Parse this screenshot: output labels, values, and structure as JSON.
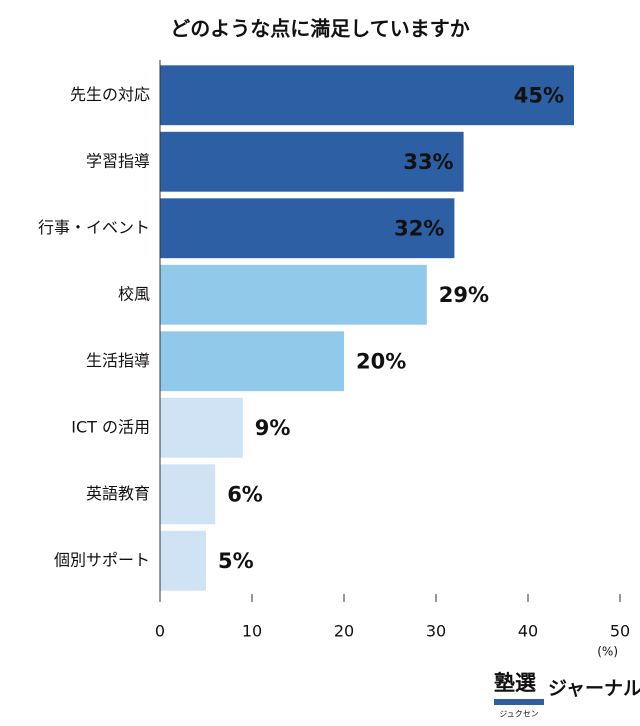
{
  "chart_data": {
    "type": "bar",
    "orientation": "horizontal",
    "title": "どのような点に満足していますか",
    "categories": [
      "先生の対応",
      "学習指導",
      "行事・イベント",
      "校風",
      "生活指導",
      "ICT の活用",
      "英語教育",
      "個別サポート"
    ],
    "values": [
      45,
      33,
      32,
      29,
      20,
      9,
      6,
      5
    ],
    "value_labels": [
      "45%",
      "33%",
      "32%",
      "29%",
      "20%",
      "9%",
      "6%",
      "5%"
    ],
    "colors": [
      "#2c5fa3",
      "#2c5fa3",
      "#2c5fa3",
      "#90c9ea",
      "#90c9ea",
      "#cfe3f5",
      "#cfe3f5",
      "#cfe3f5"
    ],
    "xlim": [
      0,
      50
    ],
    "xticks": [
      0,
      10,
      20,
      30,
      40,
      50
    ],
    "x_unit": "(%)"
  },
  "logo": {
    "main": "塾選",
    "sub": "ジュクセン",
    "suffix": "ジャーナル"
  }
}
